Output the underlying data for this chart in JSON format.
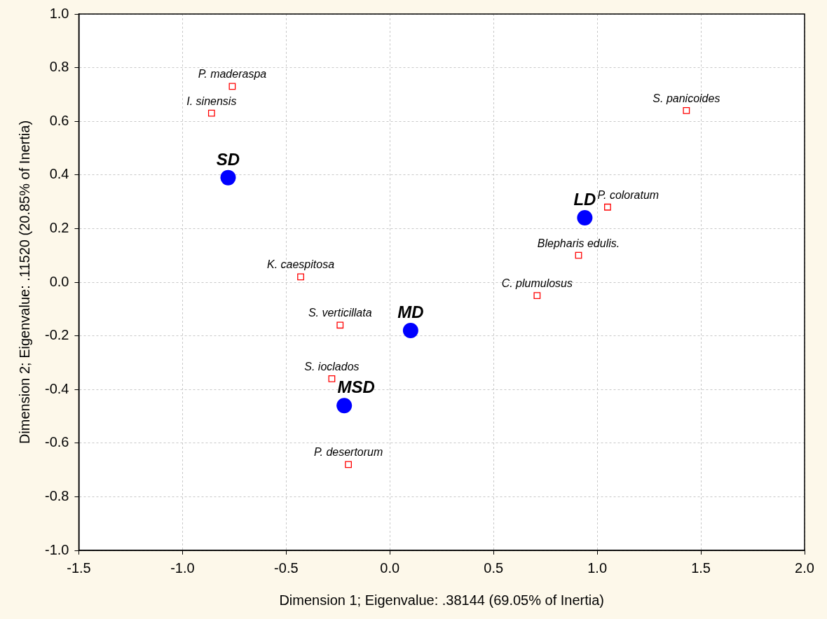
{
  "chart_data": {
    "type": "scatter",
    "xlabel": "Dimension 1; Eigenvalue: .38144 (69.05% of Inertia)",
    "ylabel": "Dimension 2; Eigenvalue: .11520 (20.85% of Inertia)",
    "series": [
      {
        "color": "#ff0000",
        "marker": "square",
        "x": [
          -0.76,
          -0.86,
          1.43,
          1.05,
          0.91,
          0.71,
          -0.43,
          -0.24,
          -0.28,
          -0.2
        ],
        "values": [
          0.73,
          0.63,
          0.64,
          0.28,
          0.1,
          -0.05,
          0.02,
          -0.16,
          -0.36,
          -0.68
        ]
      },
      {
        "color": "#0000ff",
        "marker": "circle",
        "x": [
          -0.78,
          0.94,
          0.1,
          -0.22
        ],
        "values": [
          0.39,
          0.24,
          -0.18,
          -0.46
        ]
      }
    ],
    "annotations": [
      {
        "text": "P. maderaspa",
        "x": -0.76,
        "y": 0.73
      },
      {
        "text": "I. sinensis",
        "x": -0.86,
        "y": 0.63
      },
      {
        "text": "S. panicoides",
        "x": 1.43,
        "y": 0.64
      },
      {
        "text": "P. coloratum",
        "x": 1.05,
        "y": 0.28
      },
      {
        "text": "Blepharis edulis.",
        "x": 0.91,
        "y": 0.1
      },
      {
        "text": "C. plumulosus",
        "x": 0.71,
        "y": -0.05
      },
      {
        "text": "K. caespitosa",
        "x": -0.43,
        "y": 0.02
      },
      {
        "text": "S. verticillata",
        "x": -0.24,
        "y": -0.16
      },
      {
        "text": "S. ioclados",
        "x": -0.28,
        "y": -0.36
      },
      {
        "text": "P. desertorum",
        "x": -0.2,
        "y": -0.68
      },
      {
        "text": "SD",
        "x": -0.78,
        "y": 0.39
      },
      {
        "text": "LD",
        "x": 0.94,
        "y": 0.24
      },
      {
        "text": "MD",
        "x": 0.1,
        "y": -0.18
      },
      {
        "text": "MSD",
        "x": -0.22,
        "y": -0.46
      }
    ],
    "xlim": [
      -1.5,
      2.0
    ],
    "ylim": [
      -1.0,
      1.0
    ],
    "xticks": [
      {
        "value": -1.5,
        "label": "-1.5"
      },
      {
        "value": -1,
        "label": "-1.0"
      },
      {
        "value": -0.5,
        "label": "-0.5"
      },
      {
        "value": 0,
        "label": "0.0"
      },
      {
        "value": 0.5,
        "label": "0.5"
      },
      {
        "value": 1,
        "label": "1.0"
      },
      {
        "value": 1.5,
        "label": "1.5"
      },
      {
        "value": 2,
        "label": "2.0"
      }
    ],
    "yticks": [
      {
        "value": -1,
        "label": "-1.0"
      },
      {
        "value": -0.8,
        "label": "-0.8"
      },
      {
        "value": -0.6,
        "label": "-0.6"
      },
      {
        "value": -0.4,
        "label": "-0.4"
      },
      {
        "value": -0.2,
        "label": "-0.2"
      },
      {
        "value": 0,
        "label": "0.0"
      },
      {
        "value": 0.2,
        "label": "0.2"
      },
      {
        "value": 0.4,
        "label": "0.4"
      },
      {
        "value": 0.6,
        "label": "0.6"
      },
      {
        "value": 0.8,
        "label": "0.8"
      },
      {
        "value": 1,
        "label": "1.0"
      }
    ],
    "grid": true,
    "legend": false
  }
}
